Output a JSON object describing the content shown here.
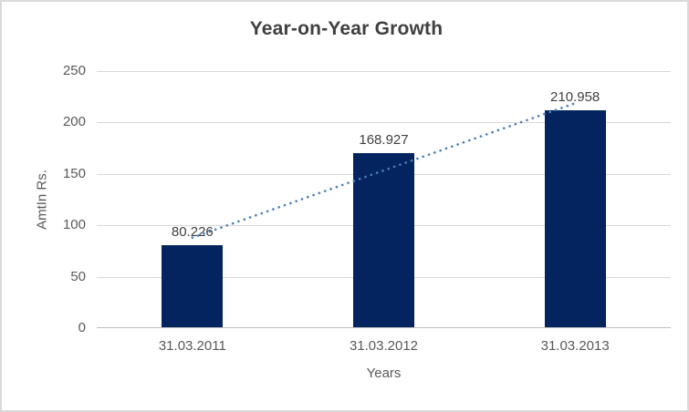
{
  "chart_data": {
    "type": "bar",
    "title": "Year-on-Year Growth",
    "categories": [
      "31.03.2011",
      "31.03.2012",
      "31.03.2013"
    ],
    "values": [
      80.226,
      168.927,
      210.958
    ],
    "data_labels": [
      "80.226",
      "168.927",
      "210.958"
    ],
    "xlabel": "Years",
    "ylabel": "AmtIn Rs.",
    "ylim": [
      0,
      250
    ],
    "yticks": [
      0,
      50,
      100,
      150,
      200,
      250
    ],
    "grid": true,
    "legend": "none",
    "bar_color": "#03245f",
    "trendline": {
      "type": "linear",
      "style": "dotted",
      "color": "#4a7ebb"
    },
    "colors": {
      "title_text": "#404040",
      "axis_text": "#595959",
      "gridline": "#d9d9d9",
      "axis_line": "#bfbfbf",
      "background": "#ffffff",
      "frame_border": "#d9d9d9"
    }
  }
}
